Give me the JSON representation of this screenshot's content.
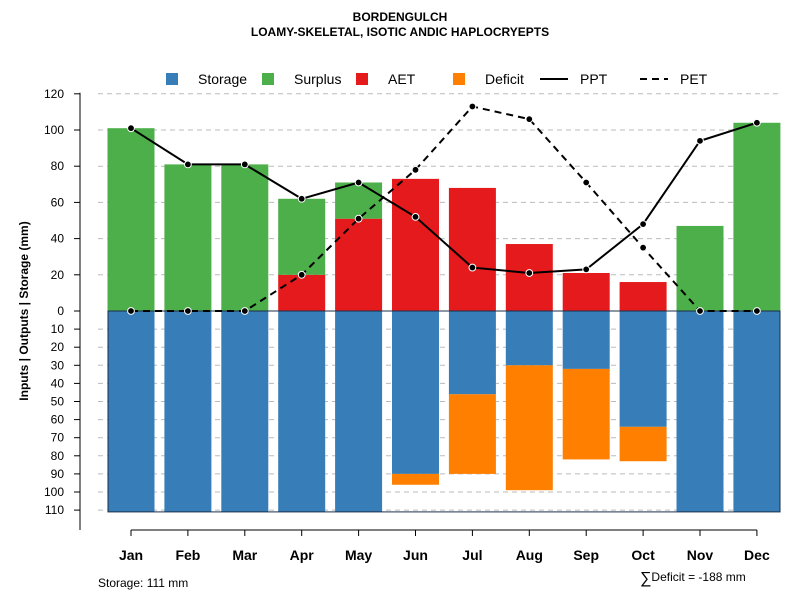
{
  "chart_data": {
    "type": "bar",
    "title": "BORDENGULCH",
    "subtitle": "LOAMY-SKELETAL, ISOTIC ANDIC HAPLOCRYEPTS",
    "ylabel": "Inputs | Outputs | Storage    (mm)",
    "xlabel": "",
    "ylim": [
      -110,
      120
    ],
    "upper_ticks": [
      0,
      20,
      40,
      60,
      80,
      100,
      120
    ],
    "lower_ticks": [
      10,
      20,
      30,
      40,
      50,
      60,
      70,
      80,
      90,
      100,
      110
    ],
    "grid": true,
    "legend_position": "top",
    "categories": [
      "Jan",
      "Feb",
      "Mar",
      "Apr",
      "May",
      "Jun",
      "Jul",
      "Aug",
      "Sep",
      "Oct",
      "Nov",
      "Dec"
    ],
    "series": [
      {
        "name": "Storage",
        "color": "#377EB8",
        "values": [
          111,
          111,
          111,
          111,
          111,
          90,
          46,
          30,
          32,
          64,
          111,
          111
        ]
      },
      {
        "name": "Surplus",
        "color": "#4DAF4A",
        "values": [
          101,
          81,
          81,
          42,
          20,
          0,
          0,
          0,
          0,
          0,
          47,
          104
        ]
      },
      {
        "name": "AET",
        "color": "#E41A1C",
        "values": [
          0,
          0,
          0,
          20,
          51,
          73,
          68,
          37,
          21,
          16,
          0,
          0
        ]
      },
      {
        "name": "Deficit",
        "color": "#FF7F00",
        "values": [
          0,
          0,
          0,
          0,
          0,
          6,
          44,
          69,
          50,
          19,
          0,
          0
        ]
      },
      {
        "name": "PPT",
        "color": "#000000",
        "style": "solid",
        "values": [
          101,
          81,
          81,
          62,
          71,
          52,
          24,
          21,
          23,
          48,
          94,
          104
        ]
      },
      {
        "name": "PET",
        "color": "#000000",
        "style": "dashed",
        "values": [
          0,
          0,
          0,
          20,
          51,
          78,
          113,
          106,
          71,
          35,
          0,
          0
        ]
      }
    ],
    "storage_capacity": 111,
    "storage_label": "Storage: 111 mm",
    "deficit_label": "Deficit = -188 mm",
    "deficit_symbol": "∑"
  }
}
